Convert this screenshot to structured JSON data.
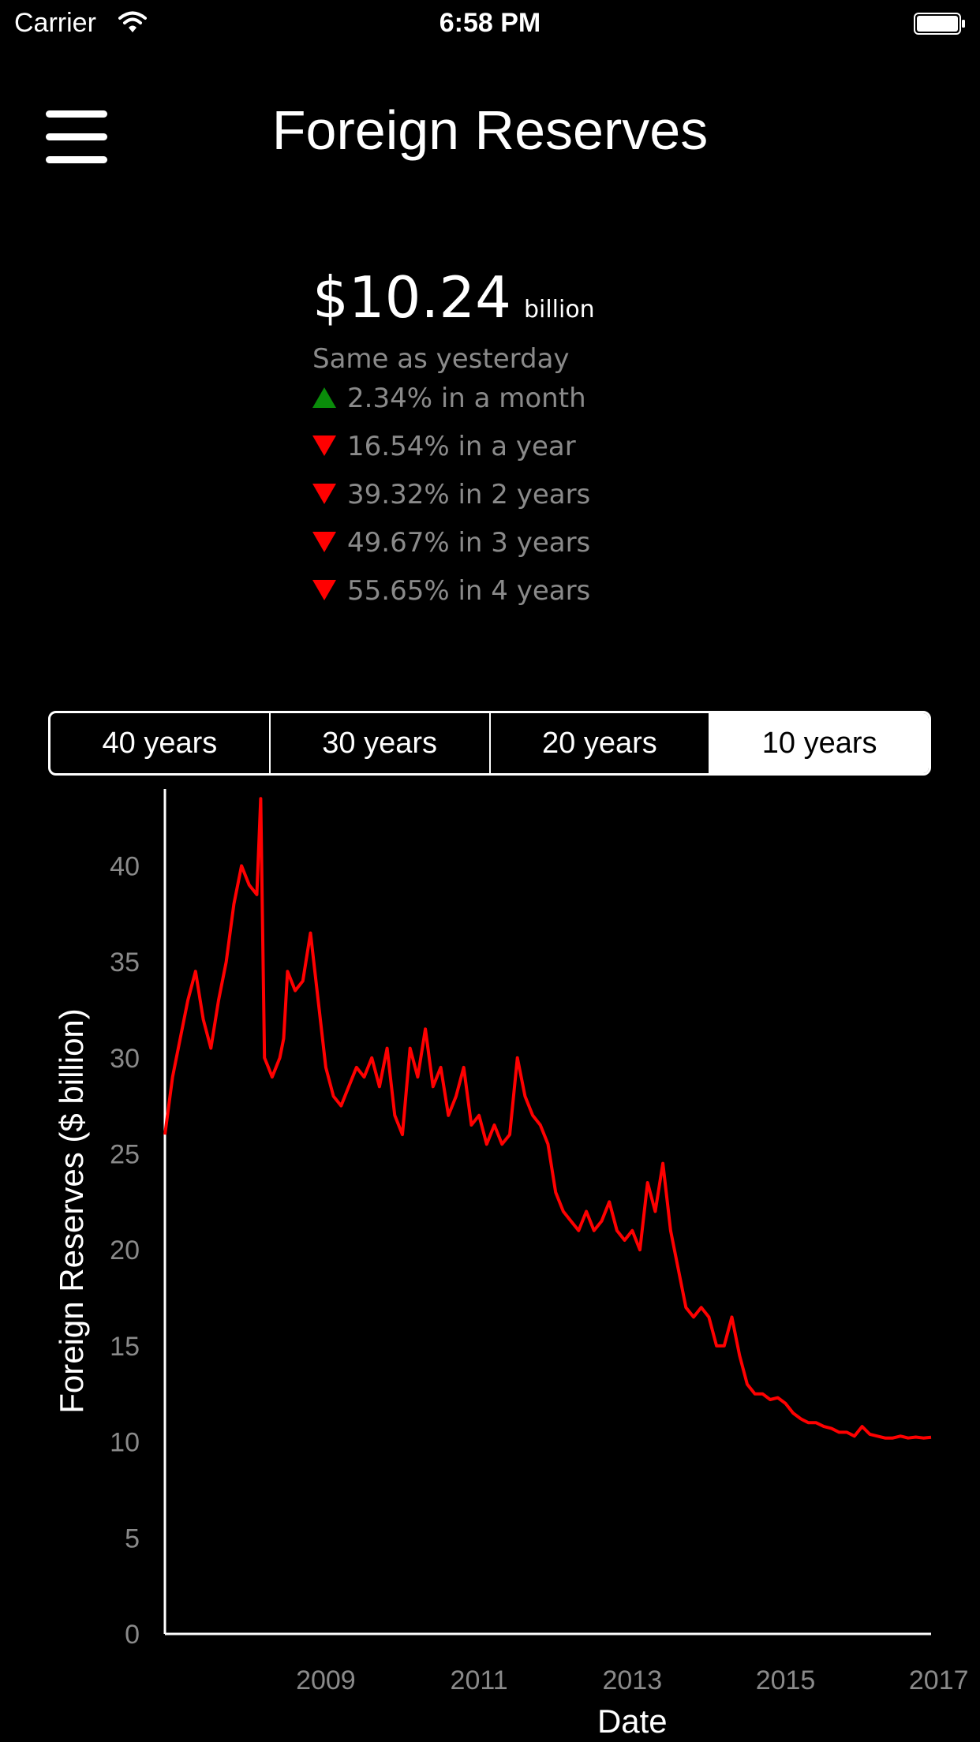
{
  "status_bar": {
    "carrier": "Carrier",
    "time": "6:58 PM"
  },
  "header": {
    "title": "Foreign Reserves"
  },
  "summary": {
    "value": "$10.24",
    "unit": "billion",
    "daily_change": "Same as yesterday",
    "changes": [
      {
        "direction": "up",
        "text": "2.34% in a month"
      },
      {
        "direction": "down",
        "text": "16.54% in a year"
      },
      {
        "direction": "down",
        "text": "39.32% in 2 years"
      },
      {
        "direction": "down",
        "text": "49.67% in 3 years"
      },
      {
        "direction": "down",
        "text": "55.65% in 4 years"
      }
    ],
    "colors": {
      "up": "#0a8c0a",
      "down": "#ff0000"
    }
  },
  "range_selector": {
    "options": [
      "40 years",
      "30 years",
      "20 years",
      "10 years"
    ],
    "selected": "10 years"
  },
  "chart_data": {
    "type": "line",
    "xlabel": "Date",
    "ylabel": "Foreign Reserves ($ billion)",
    "x_ticks": [
      "2009",
      "2011",
      "2013",
      "2015",
      "2017"
    ],
    "y_ticks": [
      0,
      5,
      10,
      15,
      20,
      25,
      30,
      35,
      40
    ],
    "xlim": [
      2007.4,
      2017.4
    ],
    "ylim": [
      0,
      44
    ],
    "color": "#ff0000",
    "series": [
      {
        "x": [
          2007.4,
          2007.5,
          2007.6,
          2007.7,
          2007.8,
          2007.9,
          2008.0,
          2008.1,
          2008.2,
          2008.3,
          2008.4,
          2008.5,
          2008.6,
          2008.65,
          2008.7,
          2008.75,
          2008.8,
          2008.85,
          2008.9,
          2008.95,
          2009.0,
          2009.1,
          2009.2,
          2009.3,
          2009.4,
          2009.5,
          2009.6,
          2009.7,
          2009.8,
          2009.9,
          2010.0,
          2010.1,
          2010.2,
          2010.3,
          2010.4,
          2010.5,
          2010.6,
          2010.7,
          2010.8,
          2010.9,
          2011.0,
          2011.1,
          2011.2,
          2011.3,
          2011.4,
          2011.5,
          2011.6,
          2011.7,
          2011.8,
          2011.9,
          2012.0,
          2012.1,
          2012.2,
          2012.3,
          2012.4,
          2012.5,
          2012.6,
          2012.7,
          2012.8,
          2012.9,
          2013.0,
          2013.1,
          2013.2,
          2013.3,
          2013.4,
          2013.5,
          2013.6,
          2013.7,
          2013.8,
          2013.9,
          2014.0,
          2014.1,
          2014.2,
          2014.3,
          2014.4,
          2014.5,
          2014.6,
          2014.7,
          2014.8,
          2014.9,
          2015.0,
          2015.1,
          2015.2,
          2015.3,
          2015.4,
          2015.5,
          2015.6,
          2015.7,
          2015.8,
          2015.9,
          2016.0,
          2016.1,
          2016.2,
          2016.3,
          2016.4,
          2016.5,
          2016.6,
          2016.7,
          2016.8,
          2016.9,
          2017.0,
          2017.1,
          2017.2,
          2017.3,
          2017.4
        ],
        "y": [
          26,
          29,
          31,
          33,
          34.5,
          32,
          30.5,
          33,
          35,
          38,
          40,
          39,
          38.5,
          43.5,
          30,
          29.5,
          29,
          29.5,
          30,
          31,
          34.5,
          33.5,
          34,
          36.5,
          33,
          29.5,
          28,
          27.5,
          28.5,
          29.5,
          29,
          30,
          28.5,
          30.5,
          27,
          26,
          30.5,
          29,
          31.5,
          28.5,
          29.5,
          27,
          28,
          29.5,
          26.5,
          27,
          25.5,
          26.5,
          25.5,
          26,
          30,
          28,
          27,
          26.5,
          25.5,
          23,
          22,
          21.5,
          21,
          22,
          21,
          21.5,
          22.5,
          21,
          20.5,
          21,
          20,
          23.5,
          22,
          24.5,
          21,
          19,
          17,
          16.5,
          17,
          16.5,
          15,
          15,
          16.5,
          14.5,
          13,
          12.5,
          12.5,
          12.2,
          12.3,
          12,
          11.5,
          11.2,
          11,
          11,
          10.8,
          10.7,
          10.5,
          10.5,
          10.3,
          10.8,
          10.4,
          10.3,
          10.2,
          10.2,
          10.3,
          10.2,
          10.25,
          10.2,
          10.24
        ]
      }
    ]
  }
}
